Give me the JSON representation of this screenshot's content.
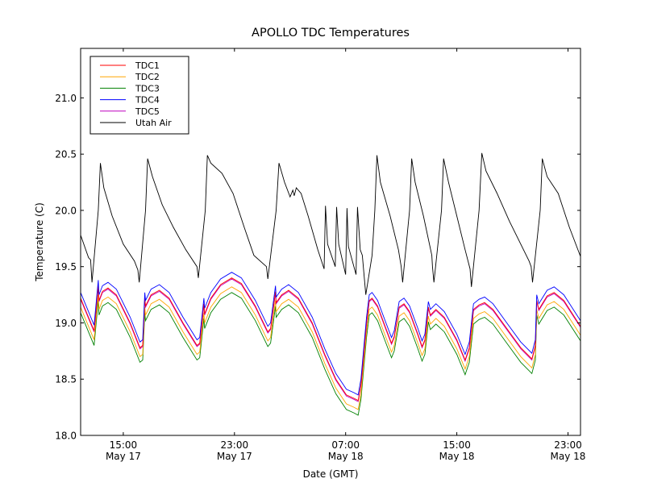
{
  "chart_data": {
    "type": "line",
    "title": "APOLLO TDC Temperatures",
    "xlabel": "Date (GMT)",
    "ylabel": "Temperature (C)",
    "x_units": "hours since 12:00 May 17 (GMT)",
    "xlim": [
      -0.07,
      35.9
    ],
    "ylim": [
      18.0,
      21.44
    ],
    "grid": false,
    "legend_position": "top-left",
    "x_ticks": [
      {
        "value": 3,
        "time": "15:00",
        "date": "May 17"
      },
      {
        "value": 11,
        "time": "23:00",
        "date": "May 17"
      },
      {
        "value": 19,
        "time": "07:00",
        "date": "May 18"
      },
      {
        "value": 27,
        "time": "15:00",
        "date": "May 18"
      },
      {
        "value": 35,
        "time": "23:00",
        "date": "May 18"
      }
    ],
    "y_ticks": [
      "18.0",
      "18.5",
      "19.0",
      "19.5",
      "20.0",
      "20.5",
      "21.0"
    ],
    "y_tick_values": [
      18.0,
      18.5,
      19.0,
      19.5,
      20.0,
      20.5,
      21.0
    ],
    "series": [
      {
        "name": "TDC1",
        "color": "#ff0000",
        "offset": 0.0
      },
      {
        "name": "TDC2",
        "color": "#ffa500",
        "offset": -0.08
      },
      {
        "name": "TDC3",
        "color": "#008000",
        "offset": -0.13
      },
      {
        "name": "TDC4",
        "color": "#0000ff",
        "offset": 0.05
      },
      {
        "name": "TDC5",
        "color": "#bf00bf",
        "offset": -0.01
      },
      {
        "name": "Utah Air",
        "color": "#000000"
      }
    ],
    "tdc_base": [
      [
        -0.07,
        19.22
      ],
      [
        0.9,
        18.93
      ],
      [
        1.2,
        19.33
      ],
      [
        1.25,
        19.2
      ],
      [
        1.5,
        19.28
      ],
      [
        1.9,
        19.31
      ],
      [
        2.5,
        19.25
      ],
      [
        3.5,
        19.0
      ],
      [
        4.2,
        18.78
      ],
      [
        4.4,
        18.8
      ],
      [
        4.55,
        19.22
      ],
      [
        4.6,
        19.15
      ],
      [
        5.0,
        19.25
      ],
      [
        5.6,
        19.29
      ],
      [
        6.3,
        19.22
      ],
      [
        7.3,
        19.0
      ],
      [
        8.3,
        18.8
      ],
      [
        8.5,
        18.82
      ],
      [
        8.8,
        19.17
      ],
      [
        8.85,
        19.08
      ],
      [
        9.3,
        19.22
      ],
      [
        10.0,
        19.34
      ],
      [
        10.8,
        19.4
      ],
      [
        11.5,
        19.35
      ],
      [
        12.5,
        19.15
      ],
      [
        13.4,
        18.92
      ],
      [
        13.6,
        18.95
      ],
      [
        13.95,
        19.28
      ],
      [
        14.0,
        19.18
      ],
      [
        14.4,
        19.25
      ],
      [
        14.9,
        19.29
      ],
      [
        15.6,
        19.22
      ],
      [
        16.6,
        19.0
      ],
      [
        17.5,
        18.72
      ],
      [
        18.3,
        18.5
      ],
      [
        19.05,
        18.36
      ],
      [
        19.6,
        18.33
      ],
      [
        19.9,
        18.31
      ],
      [
        20.1,
        18.45
      ],
      [
        20.5,
        19.0
      ],
      [
        20.7,
        19.2
      ],
      [
        20.9,
        19.22
      ],
      [
        21.3,
        19.15
      ],
      [
        21.9,
        18.95
      ],
      [
        22.3,
        18.82
      ],
      [
        22.5,
        18.88
      ],
      [
        22.85,
        19.14
      ],
      [
        23.2,
        19.17
      ],
      [
        23.6,
        19.1
      ],
      [
        24.2,
        18.9
      ],
      [
        24.5,
        18.79
      ],
      [
        24.7,
        18.85
      ],
      [
        24.95,
        19.14
      ],
      [
        25.1,
        19.07
      ],
      [
        25.5,
        19.12
      ],
      [
        26.1,
        19.05
      ],
      [
        27.0,
        18.85
      ],
      [
        27.6,
        18.67
      ],
      [
        27.9,
        18.78
      ],
      [
        28.2,
        19.12
      ],
      [
        28.6,
        19.16
      ],
      [
        29.0,
        19.18
      ],
      [
        29.6,
        19.12
      ],
      [
        30.6,
        18.95
      ],
      [
        31.6,
        18.78
      ],
      [
        32.4,
        18.68
      ],
      [
        32.65,
        18.8
      ],
      [
        32.75,
        19.2
      ],
      [
        32.9,
        19.12
      ],
      [
        33.5,
        19.24
      ],
      [
        34.0,
        19.27
      ],
      [
        34.7,
        19.2
      ],
      [
        35.9,
        18.97
      ]
    ],
    "utah_air": [
      [
        -0.07,
        19.78
      ],
      [
        0.5,
        19.58
      ],
      [
        0.65,
        19.56
      ],
      [
        0.75,
        19.36
      ],
      [
        1.2,
        20.0
      ],
      [
        1.35,
        20.42
      ],
      [
        1.6,
        20.2
      ],
      [
        2.2,
        19.95
      ],
      [
        3.0,
        19.7
      ],
      [
        3.8,
        19.55
      ],
      [
        4.05,
        19.47
      ],
      [
        4.15,
        19.36
      ],
      [
        4.6,
        20.0
      ],
      [
        4.75,
        20.46
      ],
      [
        5.1,
        20.3
      ],
      [
        5.8,
        20.05
      ],
      [
        6.6,
        19.85
      ],
      [
        7.5,
        19.65
      ],
      [
        8.3,
        19.5
      ],
      [
        8.4,
        19.4
      ],
      [
        8.9,
        20.0
      ],
      [
        9.05,
        20.49
      ],
      [
        9.3,
        20.42
      ],
      [
        10.1,
        20.33
      ],
      [
        10.9,
        20.15
      ],
      [
        11.7,
        19.85
      ],
      [
        12.4,
        19.6
      ],
      [
        13.3,
        19.5
      ],
      [
        13.4,
        19.39
      ],
      [
        14.0,
        20.0
      ],
      [
        14.2,
        20.42
      ],
      [
        14.6,
        20.25
      ],
      [
        15.0,
        20.12
      ],
      [
        15.2,
        20.18
      ],
      [
        15.3,
        20.13
      ],
      [
        15.45,
        20.2
      ],
      [
        15.8,
        20.15
      ],
      [
        16.3,
        19.95
      ],
      [
        17.0,
        19.65
      ],
      [
        17.45,
        19.48
      ],
      [
        17.55,
        20.04
      ],
      [
        17.7,
        19.7
      ],
      [
        18.25,
        19.5
      ],
      [
        18.35,
        20.03
      ],
      [
        18.5,
        19.7
      ],
      [
        19.0,
        19.43
      ],
      [
        19.1,
        20.02
      ],
      [
        19.2,
        19.68
      ],
      [
        19.75,
        19.43
      ],
      [
        19.85,
        20.03
      ],
      [
        20.05,
        19.65
      ],
      [
        20.2,
        19.6
      ],
      [
        20.45,
        19.25
      ],
      [
        20.9,
        19.6
      ],
      [
        21.1,
        20.0
      ],
      [
        21.25,
        20.49
      ],
      [
        21.5,
        20.25
      ],
      [
        22.2,
        19.95
      ],
      [
        22.8,
        19.65
      ],
      [
        23.0,
        19.5
      ],
      [
        23.1,
        19.36
      ],
      [
        23.6,
        20.0
      ],
      [
        23.75,
        20.46
      ],
      [
        24.0,
        20.25
      ],
      [
        24.6,
        19.95
      ],
      [
        25.2,
        19.6
      ],
      [
        25.25,
        19.5
      ],
      [
        25.35,
        19.36
      ],
      [
        25.9,
        20.0
      ],
      [
        26.05,
        20.46
      ],
      [
        26.4,
        20.25
      ],
      [
        27.0,
        19.95
      ],
      [
        27.6,
        19.65
      ],
      [
        27.95,
        19.48
      ],
      [
        28.05,
        19.32
      ],
      [
        28.6,
        20.0
      ],
      [
        28.8,
        20.51
      ],
      [
        29.1,
        20.35
      ],
      [
        29.9,
        20.15
      ],
      [
        30.8,
        19.9
      ],
      [
        31.6,
        19.7
      ],
      [
        32.2,
        19.55
      ],
      [
        32.35,
        19.5
      ],
      [
        32.45,
        19.36
      ],
      [
        33.0,
        20.0
      ],
      [
        33.15,
        20.46
      ],
      [
        33.5,
        20.3
      ],
      [
        34.3,
        20.15
      ],
      [
        35.1,
        19.85
      ],
      [
        35.9,
        19.59
      ]
    ]
  }
}
